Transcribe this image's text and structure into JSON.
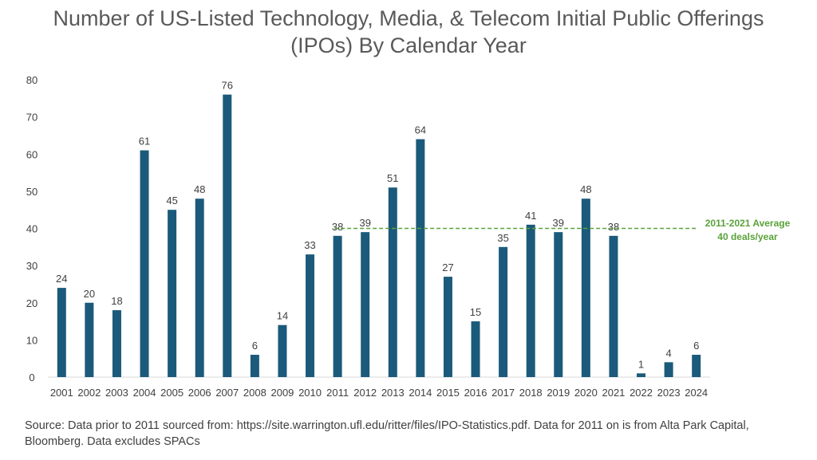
{
  "title_line1": "Number of US-Listed Technology, Media, & Telecom Initial Public Offerings",
  "title_line2": "(IPOs) By Calendar Year",
  "source": "Source: Data prior to 2011 sourced from: https://site.warrington.ufl.edu/ritter/files/IPO-Statistics.pdf. Data for 2011 on is from Alta Park Capital, Bloomberg. Data excludes SPACs",
  "chart_data": {
    "type": "bar",
    "categories": [
      "2001",
      "2002",
      "2003",
      "2004",
      "2005",
      "2006",
      "2007",
      "2008",
      "2009",
      "2010",
      "2011",
      "2012",
      "2013",
      "2014",
      "2015",
      "2016",
      "2017",
      "2018",
      "2019",
      "2020",
      "2021",
      "2022",
      "2023",
      "2024"
    ],
    "values": [
      24,
      20,
      18,
      61,
      45,
      48,
      76,
      6,
      14,
      33,
      38,
      39,
      51,
      64,
      27,
      15,
      35,
      41,
      39,
      48,
      38,
      1,
      4,
      6
    ],
    "ylim": [
      0,
      80
    ],
    "yticks": [
      0,
      10,
      20,
      30,
      40,
      50,
      60,
      70,
      80
    ],
    "grid": false,
    "bar_color": "#1b5a7a",
    "reference_line": {
      "value": 40,
      "label_line1": "2011-2021 Average",
      "label_line2": "40 deals/year",
      "color": "#5aa23a",
      "style": "dashed"
    }
  }
}
